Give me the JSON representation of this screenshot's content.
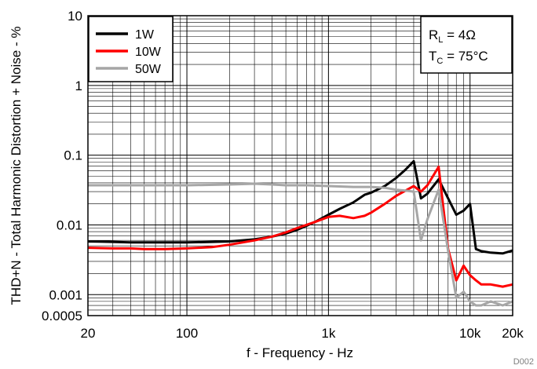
{
  "chart_data": {
    "type": "line",
    "title": "",
    "xlabel": "f - Frequency - Hz",
    "ylabel": "THD+N - Total Harmonic Distortion + Noise - %",
    "xscale": "log",
    "yscale": "log",
    "xlim": [
      20,
      20000
    ],
    "ylim": [
      0.0005,
      10
    ],
    "x_ticks": [
      {
        "value": 20,
        "label": "20"
      },
      {
        "value": 100,
        "label": "100"
      },
      {
        "value": 1000,
        "label": "1k"
      },
      {
        "value": 10000,
        "label": "10k"
      },
      {
        "value": 20000,
        "label": "20k"
      }
    ],
    "y_ticks": [
      {
        "value": 10,
        "label": "10"
      },
      {
        "value": 1,
        "label": "1"
      },
      {
        "value": 0.1,
        "label": "0.1"
      },
      {
        "value": 0.01,
        "label": "0.01"
      },
      {
        "value": 0.001,
        "label": "0.001"
      },
      {
        "value": 0.0005,
        "label": "0.0005"
      }
    ],
    "grid": true,
    "legend_position": "top-left",
    "annotation": {
      "line1": {
        "main": "R",
        "sub": "L",
        "rest": " = 4Ω"
      },
      "line2": {
        "main": "T",
        "sub": "C",
        "rest": " = 75°C"
      }
    },
    "watermark": "D002",
    "series": [
      {
        "name": "1W",
        "color": "#000000",
        "x": [
          20,
          30,
          40,
          50,
          70,
          100,
          150,
          200,
          300,
          400,
          500,
          600,
          700,
          800,
          1000,
          1200,
          1500,
          1800,
          2000,
          2500,
          3000,
          3500,
          4000,
          4500,
          5000,
          6000,
          7000,
          8000,
          9000,
          10000,
          11000,
          12000,
          14000,
          17000,
          20000
        ],
        "y": [
          0.0058,
          0.0057,
          0.0056,
          0.0056,
          0.0056,
          0.0056,
          0.0057,
          0.0058,
          0.0062,
          0.0068,
          0.0075,
          0.0085,
          0.0097,
          0.011,
          0.014,
          0.017,
          0.021,
          0.027,
          0.029,
          0.036,
          0.047,
          0.062,
          0.082,
          0.024,
          0.028,
          0.045,
          0.024,
          0.014,
          0.016,
          0.02,
          0.0045,
          0.0042,
          0.004,
          0.0039,
          0.0043
        ]
      },
      {
        "name": "10W",
        "color": "#ff0000",
        "x": [
          20,
          30,
          40,
          50,
          70,
          100,
          150,
          200,
          300,
          400,
          500,
          600,
          700,
          800,
          1000,
          1200,
          1500,
          1800,
          2000,
          2500,
          3000,
          3500,
          4000,
          4500,
          5000,
          6000,
          7000,
          8000,
          9000,
          10000,
          11000,
          12000,
          14000,
          17000,
          20000
        ],
        "y": [
          0.0047,
          0.0046,
          0.0046,
          0.0045,
          0.0045,
          0.0046,
          0.0048,
          0.0052,
          0.006,
          0.0068,
          0.0078,
          0.009,
          0.01,
          0.011,
          0.013,
          0.0135,
          0.0125,
          0.0135,
          0.015,
          0.02,
          0.026,
          0.031,
          0.036,
          0.03,
          0.037,
          0.068,
          0.0045,
          0.0016,
          0.0026,
          0.0019,
          0.0016,
          0.0014,
          0.0014,
          0.0013,
          0.0014
        ]
      },
      {
        "name": "50W",
        "color": "#a6a6a6",
        "x": [
          20,
          30,
          50,
          100,
          200,
          300,
          400,
          500,
          700,
          1000,
          1500,
          2000,
          2500,
          3000,
          3500,
          4000,
          4500,
          5000,
          6000,
          7000,
          8000,
          9000,
          10000,
          11000,
          12000,
          14000,
          17000,
          20000
        ],
        "y": [
          0.037,
          0.037,
          0.037,
          0.037,
          0.038,
          0.039,
          0.038,
          0.037,
          0.037,
          0.036,
          0.035,
          0.035,
          0.034,
          0.032,
          0.031,
          0.03,
          0.006,
          0.012,
          0.032,
          0.0042,
          0.0009,
          0.0011,
          0.0008,
          0.0007,
          0.0007,
          0.0008,
          0.0007,
          0.0008
        ]
      }
    ]
  }
}
